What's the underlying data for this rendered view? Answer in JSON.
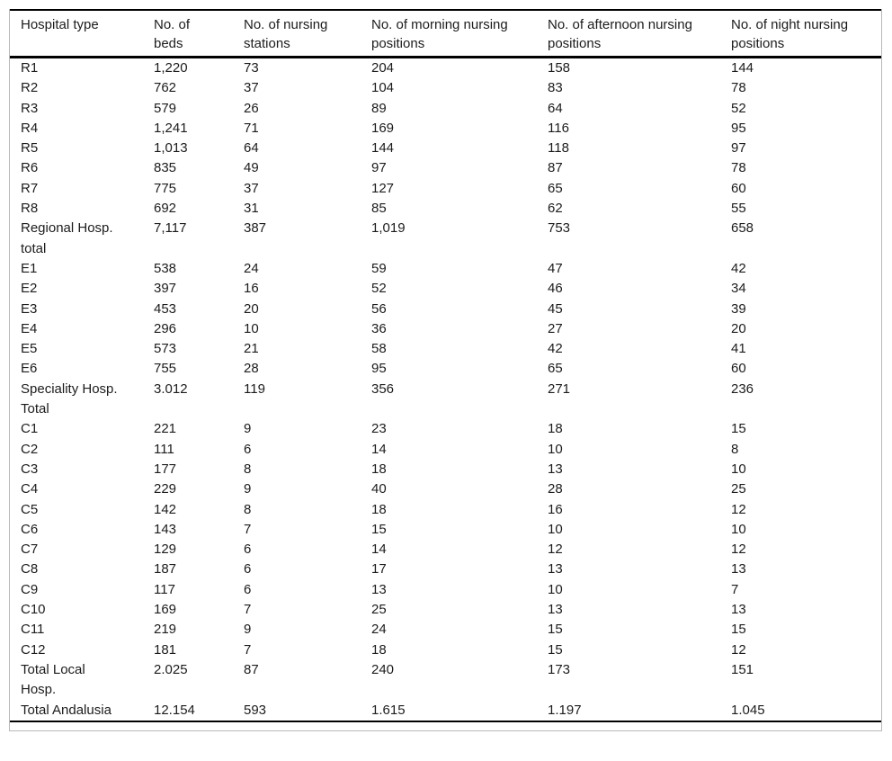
{
  "table": {
    "columns": [
      {
        "key": "hospital-type",
        "label": "Hospital type"
      },
      {
        "key": "beds",
        "label": "No. of\nbeds"
      },
      {
        "key": "nursing-stations",
        "label": "No. of nursing\nstations"
      },
      {
        "key": "morning-positions",
        "label": "No. of morning nursing\npositions"
      },
      {
        "key": "afternoon-positions",
        "label": "No. of afternoon nursing\npositions"
      },
      {
        "key": "night-positions",
        "label": "No. of night nursing\npositions"
      }
    ],
    "rows": [
      [
        "R1",
        "1,220",
        "73",
        "204",
        "158",
        "144"
      ],
      [
        "R2",
        "762",
        "37",
        "104",
        "83",
        "78"
      ],
      [
        "R3",
        "579",
        "26",
        "89",
        "64",
        "52"
      ],
      [
        "R4",
        "1,241",
        "71",
        "169",
        "116",
        "95"
      ],
      [
        "R5",
        "1,013",
        "64",
        "144",
        "118",
        "97"
      ],
      [
        "R6",
        "835",
        "49",
        "97",
        "87",
        "78"
      ],
      [
        "R7",
        "775",
        "37",
        "127",
        "65",
        "60"
      ],
      [
        "R8",
        "692",
        "31",
        "85",
        "62",
        "55"
      ],
      [
        "Regional Hosp.\ntotal",
        "7,117",
        "387",
        "1,019",
        "753",
        "658"
      ],
      [
        "E1",
        "538",
        "24",
        "59",
        "47",
        "42"
      ],
      [
        "E2",
        "397",
        "16",
        "52",
        "46",
        "34"
      ],
      [
        "E3",
        "453",
        "20",
        "56",
        "45",
        "39"
      ],
      [
        "E4",
        "296",
        "10",
        "36",
        "27",
        "20"
      ],
      [
        "E5",
        "573",
        "21",
        "58",
        "42",
        "41"
      ],
      [
        "E6",
        "755",
        "28",
        "95",
        "65",
        "60"
      ],
      [
        "Speciality Hosp.\nTotal",
        "3.012",
        "119",
        "356",
        "271",
        "236"
      ],
      [
        "C1",
        "221",
        "9",
        "23",
        "18",
        "15"
      ],
      [
        "C2",
        "111",
        "6",
        "14",
        "10",
        "8"
      ],
      [
        "C3",
        "177",
        "8",
        "18",
        "13",
        "10"
      ],
      [
        "C4",
        "229",
        "9",
        "40",
        "28",
        "25"
      ],
      [
        "C5",
        "142",
        "8",
        "18",
        "16",
        "12"
      ],
      [
        "C6",
        "143",
        "7",
        "15",
        "10",
        "10"
      ],
      [
        "C7",
        "129",
        "6",
        "14",
        "12",
        "12"
      ],
      [
        "C8",
        "187",
        "6",
        "17",
        "13",
        "13"
      ],
      [
        "C9",
        "117",
        "6",
        "13",
        "10",
        "7"
      ],
      [
        "C10",
        "169",
        "7",
        "25",
        "13",
        "13"
      ],
      [
        "C11",
        "219",
        "9",
        "24",
        "15",
        "15"
      ],
      [
        "C12",
        "181",
        "7",
        "18",
        "15",
        "12"
      ],
      [
        "Total Local\nHosp.",
        "2.025",
        "87",
        "240",
        "173",
        "151"
      ],
      [
        "Total Andalusia",
        "12.154",
        "593",
        "1.615",
        "1.197",
        "1.045"
      ]
    ]
  },
  "colors": {
    "rule_black": "#000000",
    "frame_gray": "#b9b9b9",
    "text": "#1c1c1c",
    "background": "#ffffff"
  }
}
